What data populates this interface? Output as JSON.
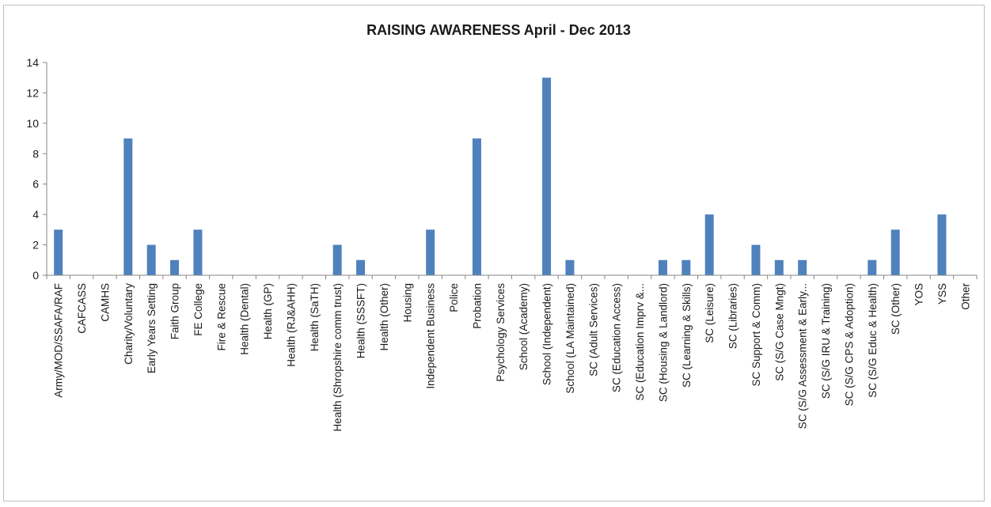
{
  "chart_data": {
    "type": "bar",
    "title": "RAISING AWARENESS April - Dec 2013",
    "xlabel": "",
    "ylabel": "",
    "ylim": [
      0,
      14
    ],
    "yticks": [
      0,
      2,
      4,
      6,
      8,
      10,
      12,
      14
    ],
    "grid": false,
    "legend": "none",
    "bar_color": "#4f81bd",
    "categories": [
      "Army/MOD/SSAFA/RAF",
      "CAFCASS",
      "CAMHS",
      "Charity/Voluntary",
      "Early Years Setting",
      "Faith Group",
      "FE College",
      "Fire & Rescue",
      "Health (Dental)",
      "Health (GP)",
      "Health (RJ&AHH)",
      "Health (SaTH)",
      "Health (Shropshire comm trust)",
      "Health (SSSFT)",
      "Health (Other)",
      "Housing",
      "Independent Business",
      "Police",
      "Probation",
      "Psychology Services",
      "School (Academy)",
      "School (Independent)",
      "School (LA Maintained)",
      "SC (Adult Services)",
      "SC (Education Access)",
      "SC (Education Imprv &...",
      "SC (Housing & Landlord)",
      "SC (Learning & Skills)",
      "SC (Leisure)",
      "SC (Libraries)",
      "SC Support & Comm)",
      "SC (S/G Case Mngt)",
      "SC (S/G Assessment & Early...",
      "SC (S/G IRU & Training)",
      "SC (S/G CPS & Adoption)",
      "SC (S/G Educ & Health)",
      "SC (Other)",
      "YOS",
      "YSS",
      "Other"
    ],
    "series": [
      {
        "values": [
          3,
          0,
          0,
          9,
          2,
          1,
          3,
          0,
          0,
          0,
          0,
          0,
          2,
          1,
          0,
          0,
          3,
          0,
          9,
          0,
          0,
          13,
          1,
          0,
          0,
          0,
          1,
          1,
          4,
          0,
          2,
          1,
          1,
          0,
          0,
          1,
          3,
          0,
          4,
          0
        ]
      }
    ]
  }
}
